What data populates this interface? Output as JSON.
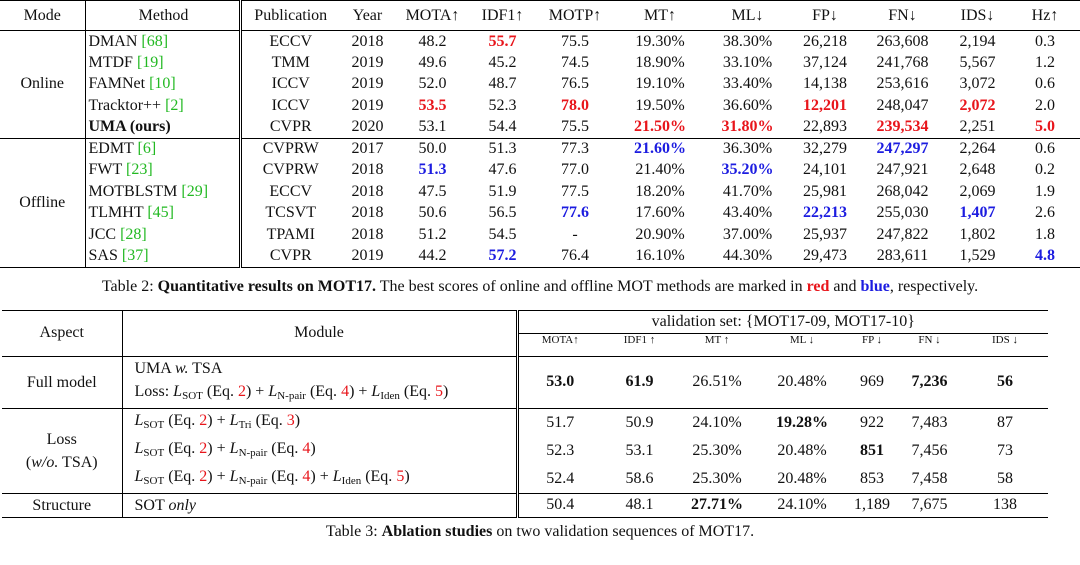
{
  "table2": {
    "header": [
      "Mode",
      "Method",
      "Publication",
      "Year",
      "MOTA↑",
      "IDF1↑",
      "MOTP↑",
      "MT↑",
      "ML↓",
      "FP↓",
      "FN↓",
      "IDS↓",
      "Hz↑"
    ],
    "groups": [
      {
        "mode": "Online",
        "rows": [
          {
            "name": "DMAN",
            "ref": "[68]",
            "cells": [
              "ECCV",
              "2018",
              "48.2",
              "55.7",
              "75.5",
              "19.30%",
              "38.30%",
              "26,218",
              "263,608",
              "2,194",
              "0.3"
            ],
            "red": [
              3
            ]
          },
          {
            "name": "MTDF",
            "ref": "[19]",
            "cells": [
              "TMM",
              "2019",
              "49.6",
              "45.2",
              "74.5",
              "18.90%",
              "33.10%",
              "37,124",
              "241,768",
              "5,567",
              "1.2"
            ]
          },
          {
            "name": "FAMNet",
            "ref": "[10]",
            "cells": [
              "ICCV",
              "2019",
              "52.0",
              "48.7",
              "76.5",
              "19.10%",
              "33.40%",
              "14,138",
              "253,616",
              "3,072",
              "0.6"
            ]
          },
          {
            "name": "Tracktor++",
            "ref": "[2]",
            "cells": [
              "ICCV",
              "2019",
              "53.5",
              "52.3",
              "78.0",
              "19.50%",
              "36.60%",
              "12,201",
              "248,047",
              "2,072",
              "2.0"
            ],
            "red": [
              2,
              4,
              7,
              9
            ]
          },
          {
            "name": "UMA (ours)",
            "bold": true,
            "cells": [
              "CVPR",
              "2020",
              "53.1",
              "54.4",
              "75.5",
              "21.50%",
              "31.80%",
              "22,893",
              "239,534",
              "2,251",
              "5.0"
            ],
            "red": [
              5,
              6,
              8,
              10
            ]
          }
        ]
      },
      {
        "mode": "Offline",
        "rows": [
          {
            "name": "EDMT",
            "ref": "[6]",
            "cells": [
              "CVPRW",
              "2017",
              "50.0",
              "51.3",
              "77.3",
              "21.60%",
              "36.30%",
              "32,279",
              "247,297",
              "2,264",
              "0.6"
            ],
            "blue": [
              5,
              8
            ]
          },
          {
            "name": "FWT",
            "ref": "[23]",
            "cells": [
              "CVPRW",
              "2018",
              "51.3",
              "47.6",
              "77.0",
              "21.40%",
              "35.20%",
              "24,101",
              "247,921",
              "2,648",
              "0.2"
            ],
            "blue": [
              2,
              6
            ]
          },
          {
            "name": "MOTBLSTM",
            "ref": "[29]",
            "cells": [
              "ECCV",
              "2018",
              "47.5",
              "51.9",
              "77.5",
              "18.20%",
              "41.70%",
              "25,981",
              "268,042",
              "2,069",
              "1.9"
            ]
          },
          {
            "name": "TLMHT",
            "ref": "[45]",
            "cells": [
              "TCSVT",
              "2018",
              "50.6",
              "56.5",
              "77.6",
              "17.60%",
              "43.40%",
              "22,213",
              "255,030",
              "1,407",
              "2.6"
            ],
            "blue": [
              4,
              7,
              9
            ]
          },
          {
            "name": "JCC",
            "ref": "[28]",
            "cells": [
              "TPAMI",
              "2018",
              "51.2",
              "54.5",
              "-",
              "20.90%",
              "37.00%",
              "25,937",
              "247,822",
              "1,802",
              "1.8"
            ]
          },
          {
            "name": "SAS",
            "ref": "[37]",
            "cells": [
              "CVPR",
              "2019",
              "44.2",
              "57.2",
              "76.4",
              "16.10%",
              "44.30%",
              "29,473",
              "283,611",
              "1,529",
              "4.8"
            ],
            "blue": [
              3,
              10
            ]
          }
        ]
      }
    ],
    "caption": [
      {
        "text": "Table 2: "
      },
      {
        "text": "Quantitative results on MOT17.",
        "style": "bold"
      },
      {
        "text": " The best scores of online and offline MOT methods are marked in "
      },
      {
        "text": "red",
        "style": "red"
      },
      {
        "text": " and "
      },
      {
        "text": "blue",
        "style": "blue"
      },
      {
        "text": ", respectively."
      }
    ]
  },
  "table3": {
    "aspect_header": "Aspect",
    "module_header": "Module",
    "group_header": "validation set: {MOT17-09, MOT17-10}",
    "metrics": [
      "MOTA↑",
      "IDF1 ↑",
      "MT ↑",
      "ML ↓",
      "FP ↓",
      "FN ↓",
      "IDS ↓"
    ],
    "groups": [
      {
        "aspect": [
          [
            {
              "text": "Full model"
            }
          ]
        ],
        "rows": [
          {
            "module": [
              [
                {
                  "text": "UMA "
                },
                {
                  "text": "w.",
                  "style": "italic"
                },
                {
                  "text": " TSA"
                }
              ],
              [
                {
                  "text": "Loss: "
                },
                {
                  "text": "L",
                  "style": "italic"
                },
                {
                  "text": "SOT",
                  "style": "sub"
                },
                {
                  "text": " (Eq. "
                },
                {
                  "text": "2",
                  "style": "eqref"
                },
                {
                  "text": ") + "
                },
                {
                  "text": "L",
                  "style": "italic"
                },
                {
                  "text": "N-pair",
                  "style": "sub"
                },
                {
                  "text": " (Eq. "
                },
                {
                  "text": "4",
                  "style": "eqref"
                },
                {
                  "text": ") + "
                },
                {
                  "text": "L",
                  "style": "italic"
                },
                {
                  "text": "Iden",
                  "style": "sub"
                },
                {
                  "text": " (Eq. "
                },
                {
                  "text": "5",
                  "style": "eqref"
                },
                {
                  "text": ")"
                }
              ]
            ],
            "values": [
              "53.0",
              "61.9",
              "26.51%",
              "20.48%",
              "969",
              "7,236",
              "56"
            ],
            "bold": [
              0,
              1,
              5,
              6
            ]
          }
        ]
      },
      {
        "aspect": [
          [
            {
              "text": "Loss"
            }
          ],
          [
            {
              "text": "("
            },
            {
              "text": "w/o.",
              "style": "italic"
            },
            {
              "text": " TSA)"
            }
          ]
        ],
        "rows": [
          {
            "module": [
              [
                {
                  "text": "L",
                  "style": "italic"
                },
                {
                  "text": "SOT",
                  "style": "sub"
                },
                {
                  "text": " (Eq. "
                },
                {
                  "text": "2",
                  "style": "eqref"
                },
                {
                  "text": ") + "
                },
                {
                  "text": "L",
                  "style": "italic"
                },
                {
                  "text": "Tri",
                  "style": "sub"
                },
                {
                  "text": " (Eq. "
                },
                {
                  "text": "3",
                  "style": "eqref"
                },
                {
                  "text": ")"
                }
              ]
            ],
            "values": [
              "51.7",
              "50.9",
              "24.10%",
              "19.28%",
              "922",
              "7,483",
              "87"
            ],
            "bold": [
              3
            ]
          },
          {
            "module": [
              [
                {
                  "text": "L",
                  "style": "italic"
                },
                {
                  "text": "SOT",
                  "style": "sub"
                },
                {
                  "text": " (Eq. "
                },
                {
                  "text": "2",
                  "style": "eqref"
                },
                {
                  "text": ") + "
                },
                {
                  "text": "L",
                  "style": "italic"
                },
                {
                  "text": "N-pair",
                  "style": "sub"
                },
                {
                  "text": " (Eq. "
                },
                {
                  "text": "4",
                  "style": "eqref"
                },
                {
                  "text": ")"
                }
              ]
            ],
            "values": [
              "52.3",
              "53.1",
              "25.30%",
              "20.48%",
              "851",
              "7,456",
              "73"
            ],
            "bold": [
              4
            ]
          },
          {
            "module": [
              [
                {
                  "text": "L",
                  "style": "italic"
                },
                {
                  "text": "SOT",
                  "style": "sub"
                },
                {
                  "text": " (Eq. "
                },
                {
                  "text": "2",
                  "style": "eqref"
                },
                {
                  "text": ") + "
                },
                {
                  "text": "L",
                  "style": "italic"
                },
                {
                  "text": "N-pair",
                  "style": "sub"
                },
                {
                  "text": " (Eq. "
                },
                {
                  "text": "4",
                  "style": "eqref"
                },
                {
                  "text": ") + "
                },
                {
                  "text": "L",
                  "style": "italic"
                },
                {
                  "text": "Iden",
                  "style": "sub"
                },
                {
                  "text": " (Eq. "
                },
                {
                  "text": "5",
                  "style": "eqref"
                },
                {
                  "text": ")"
                }
              ]
            ],
            "values": [
              "52.4",
              "58.6",
              "25.30%",
              "20.48%",
              "853",
              "7,458",
              "58"
            ]
          }
        ]
      },
      {
        "aspect": [
          [
            {
              "text": "Structure"
            }
          ]
        ],
        "rows": [
          {
            "module": [
              [
                {
                  "text": "SOT "
                },
                {
                  "text": "only",
                  "style": "italic"
                }
              ]
            ],
            "values": [
              "50.4",
              "48.1",
              "27.71%",
              "24.10%",
              "1,189",
              "7,675",
              "138"
            ],
            "bold": [
              2
            ]
          }
        ]
      }
    ],
    "caption": [
      {
        "text": "Table 3: "
      },
      {
        "text": "Ablation studies",
        "style": "bold"
      },
      {
        "text": " on two validation sequences of MOT17."
      }
    ]
  }
}
